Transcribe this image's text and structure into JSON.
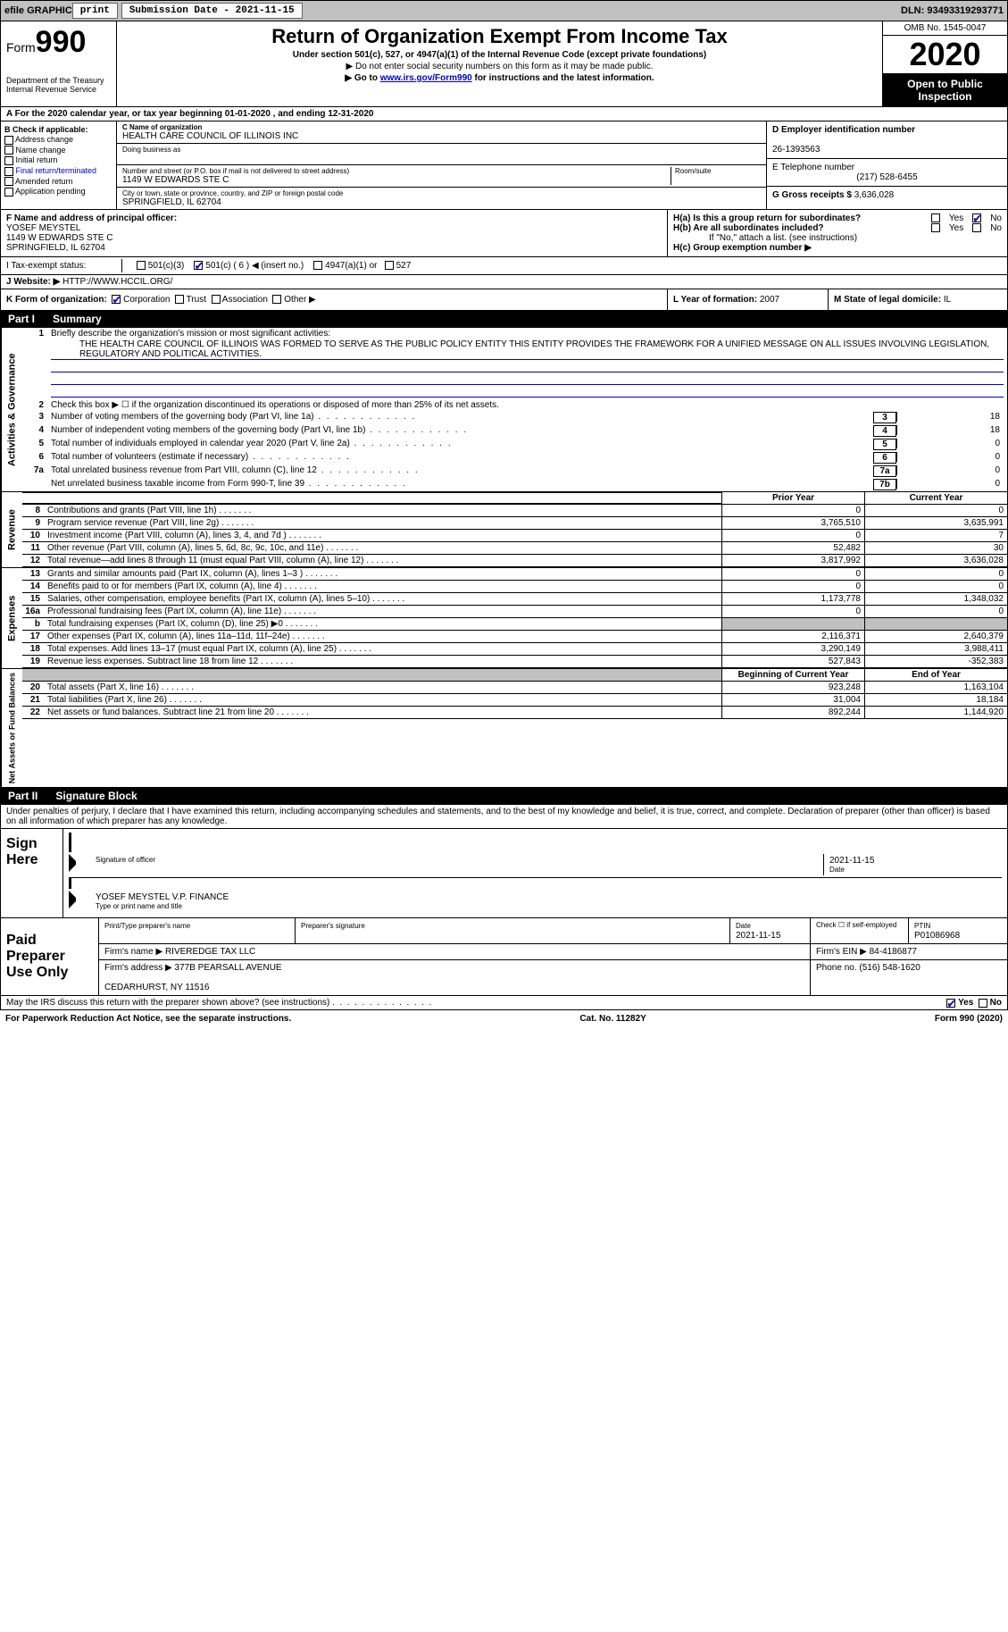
{
  "topbar": {
    "efile_label": "efile GRAPHIC",
    "print_btn": "print",
    "submission_label": "Submission Date - 2021-11-15",
    "dln_label": "DLN: 93493319293771"
  },
  "header": {
    "form_label": "Form",
    "form_number": "990",
    "dept": "Department of the Treasury\nInternal Revenue Service",
    "title": "Return of Organization Exempt From Income Tax",
    "sub1": "Under section 501(c), 527, or 4947(a)(1) of the Internal Revenue Code (except private foundations)",
    "sub2": "▶ Do not enter social security numbers on this form as it may be made public.",
    "sub3_prefix": "▶ Go to ",
    "sub3_link": "www.irs.gov/Form990",
    "sub3_suffix": " for instructions and the latest information.",
    "omb": "OMB No. 1545-0047",
    "tax_year": "2020",
    "open_public": "Open to Public Inspection"
  },
  "period": {
    "text": "A For the 2020 calendar year, or tax year beginning 01-01-2020    , and ending 12-31-2020"
  },
  "boxB": {
    "header": "B Check if applicable:",
    "items": [
      "Address change",
      "Name change",
      "Initial return",
      "Final return/terminated",
      "Amended return",
      "Application pending"
    ]
  },
  "boxC": {
    "name_label": "C Name of organization",
    "org_name": "HEALTH CARE COUNCIL OF ILLINOIS INC",
    "dba_label": "Doing business as",
    "dba": "",
    "street_label": "Number and street (or P.O. box if mail is not delivered to street address)",
    "street": "1149 W EDWARDS STE C",
    "room_label": "Room/suite",
    "city_label": "City or town, state or province, country, and ZIP or foreign postal code",
    "city": "SPRINGFIELD, IL  62704"
  },
  "boxD": {
    "label": "D Employer identification number",
    "ein": "26-1393563"
  },
  "boxE": {
    "label": "E Telephone number",
    "phone": "(217) 528-6455"
  },
  "boxG": {
    "label": "G Gross receipts $",
    "amount": "3,636,028"
  },
  "boxF": {
    "label": "F Name and address of principal officer:",
    "name": "YOSEF MEYSTEL",
    "addr1": "1149 W EDWARDS STE C",
    "addr2": "SPRINGFIELD, IL  62704"
  },
  "boxH": {
    "a_label": "H(a)  Is this a group return for subordinates?",
    "b_label": "H(b)  Are all subordinates included?",
    "b_note": "If \"No,\" attach a list. (see instructions)",
    "c_label": "H(c)  Group exemption number ▶",
    "yes": "Yes",
    "no": "No"
  },
  "boxI": {
    "label": "I    Tax-exempt status:",
    "opt1": "501(c)(3)",
    "opt2": "501(c) ( 6 ) ◀ (insert no.)",
    "opt3": "4947(a)(1) or",
    "opt4": "527"
  },
  "boxJ": {
    "label": "J   Website: ▶",
    "url": "HTTP://WWW.HCCIL.ORG/"
  },
  "boxK": {
    "label": "K Form of organization:",
    "opts": [
      "Corporation",
      "Trust",
      "Association",
      "Other ▶"
    ]
  },
  "boxL": {
    "label": "L Year of formation:",
    "val": "2007"
  },
  "boxM": {
    "label": "M State of legal domicile:",
    "val": "IL"
  },
  "part1": {
    "header_pt": "Part I",
    "header_txt": "Summary",
    "side_labels": [
      "Activities & Governance",
      "Revenue",
      "Expenses",
      "Net Assets or Fund Balances"
    ],
    "line1_label": "Briefly describe the organization's mission or most significant activities:",
    "mission": "THE HEALTH CARE COUNCIL OF ILLINOIS WAS FORMED TO SERVE AS THE PUBLIC POLICY ENTITY THIS ENTITY PROVIDES THE FRAMEWORK FOR A UNIFIED MESSAGE ON ALL ISSUES INVOLVING LEGISLATION, REGULATORY AND POLITICAL ACTIVITIES.",
    "line2": "Check this box ▶ ☐ if the organization discontinued its operations or disposed of more than 25% of its net assets.",
    "gov_rows": [
      {
        "n": "3",
        "t": "Number of voting members of the governing body (Part VI, line 1a)",
        "box": "3",
        "v": "18"
      },
      {
        "n": "4",
        "t": "Number of independent voting members of the governing body (Part VI, line 1b)",
        "box": "4",
        "v": "18"
      },
      {
        "n": "5",
        "t": "Total number of individuals employed in calendar year 2020 (Part V, line 2a)",
        "box": "5",
        "v": "0"
      },
      {
        "n": "6",
        "t": "Total number of volunteers (estimate if necessary)",
        "box": "6",
        "v": "0"
      },
      {
        "n": "7a",
        "t": "Total unrelated business revenue from Part VIII, column (C), line 12",
        "box": "7a",
        "v": "0"
      },
      {
        "n": "",
        "t": "Net unrelated business taxable income from Form 990-T, line 39",
        "box": "7b",
        "v": "0"
      }
    ],
    "hdr_prior": "Prior Year",
    "hdr_curr": "Current Year",
    "rev_rows": [
      {
        "n": "8",
        "t": "Contributions and grants (Part VIII, line 1h)",
        "p": "0",
        "c": "0"
      },
      {
        "n": "9",
        "t": "Program service revenue (Part VIII, line 2g)",
        "p": "3,765,510",
        "c": "3,635,991"
      },
      {
        "n": "10",
        "t": "Investment income (Part VIII, column (A), lines 3, 4, and 7d )",
        "p": "0",
        "c": "7"
      },
      {
        "n": "11",
        "t": "Other revenue (Part VIII, column (A), lines 5, 6d, 8c, 9c, 10c, and 11e)",
        "p": "52,482",
        "c": "30"
      },
      {
        "n": "12",
        "t": "Total revenue—add lines 8 through 11 (must equal Part VIII, column (A), line 12)",
        "p": "3,817,992",
        "c": "3,636,028"
      }
    ],
    "exp_rows": [
      {
        "n": "13",
        "t": "Grants and similar amounts paid (Part IX, column (A), lines 1–3 )",
        "p": "0",
        "c": "0"
      },
      {
        "n": "14",
        "t": "Benefits paid to or for members (Part IX, column (A), line 4)",
        "p": "0",
        "c": "0"
      },
      {
        "n": "15",
        "t": "Salaries, other compensation, employee benefits (Part IX, column (A), lines 5–10)",
        "p": "1,173,778",
        "c": "1,348,032"
      },
      {
        "n": "16a",
        "t": "Professional fundraising fees (Part IX, column (A), line 11e)",
        "p": "0",
        "c": "0"
      },
      {
        "n": "b",
        "t": "Total fundraising expenses (Part IX, column (D), line 25) ▶0",
        "p": "",
        "c": "",
        "shade": true
      },
      {
        "n": "17",
        "t": "Other expenses (Part IX, column (A), lines 11a–11d, 11f–24e)",
        "p": "2,116,371",
        "c": "2,640,379"
      },
      {
        "n": "18",
        "t": "Total expenses. Add lines 13–17 (must equal Part IX, column (A), line 25)",
        "p": "3,290,149",
        "c": "3,988,411"
      },
      {
        "n": "19",
        "t": "Revenue less expenses. Subtract line 18 from line 12",
        "p": "527,843",
        "c": "-352,383"
      }
    ],
    "hdr_boy": "Beginning of Current Year",
    "hdr_eoy": "End of Year",
    "net_rows": [
      {
        "n": "20",
        "t": "Total assets (Part X, line 16)",
        "p": "923,248",
        "c": "1,163,104"
      },
      {
        "n": "21",
        "t": "Total liabilities (Part X, line 26)",
        "p": "31,004",
        "c": "18,184"
      },
      {
        "n": "22",
        "t": "Net assets or fund balances. Subtract line 21 from line 20",
        "p": "892,244",
        "c": "1,144,920"
      }
    ]
  },
  "part2": {
    "header_pt": "Part II",
    "header_txt": "Signature Block",
    "declaration": "Under penalties of perjury, I declare that I have examined this return, including accompanying schedules and statements, and to the best of my knowledge and belief, it is true, correct, and complete. Declaration of preparer (other than officer) is based on all information of which preparer has any knowledge."
  },
  "sign": {
    "label": "Sign Here",
    "sig_officer": "Signature of officer",
    "date": "Date",
    "date_val": "2021-11-15",
    "officer_name": "YOSEF MEYSTEL V.P. FINANCE",
    "type_label": "Type or print name and title"
  },
  "preparer": {
    "label": "Paid Preparer Use Only",
    "h_name": "Print/Type preparer's name",
    "h_sig": "Preparer's signature",
    "h_date": "Date",
    "date_val": "2021-11-15",
    "h_self": "Check ☐ if self-employed",
    "h_ptin": "PTIN",
    "ptin": "P01086968",
    "firm_name_lbl": "Firm's name    ▶",
    "firm_name": "RIVEREDGE TAX LLC",
    "firm_ein_lbl": "Firm's EIN ▶",
    "firm_ein": "84-4186877",
    "firm_addr_lbl": "Firm's address ▶",
    "firm_addr": "377B PEARSALL AVENUE\n\nCEDARHURST, NY  11516",
    "phone_lbl": "Phone no.",
    "phone": "(516) 548-1620"
  },
  "discuss": {
    "text": "May the IRS discuss this return with the preparer shown above? (see instructions)",
    "yes": "Yes",
    "no": "No"
  },
  "footer": {
    "left": "For Paperwork Reduction Act Notice, see the separate instructions.",
    "mid": "Cat. No. 11282Y",
    "right": "Form 990 (2020)"
  },
  "colors": {
    "link": "#0000cc",
    "shade": "#c0c0c0",
    "black": "#000000",
    "white": "#ffffff"
  }
}
